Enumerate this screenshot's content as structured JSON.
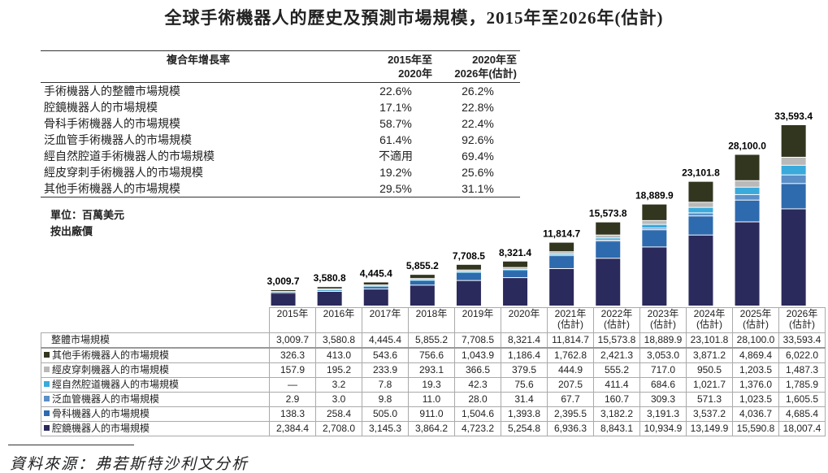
{
  "title": "全球手術機器人的歷史及預測市場規模，2015年至2026年(估計)",
  "cagr_table": {
    "header": {
      "label": "複合年增長率",
      "col1": [
        "2015年至",
        "2020年"
      ],
      "col2": [
        "2020年至",
        "2026年(估計)"
      ]
    },
    "rows": [
      {
        "label": "手術機器人的整體市場規模",
        "c1": "22.6%",
        "c2": "26.2%"
      },
      {
        "label": "腔鏡機器人的市場規模",
        "c1": "17.1%",
        "c2": "22.8%"
      },
      {
        "label": "骨科手術機器人的市場規模",
        "c1": "58.7%",
        "c2": "22.4%"
      },
      {
        "label": "泛血管手術機器人的市場規模",
        "c1": "61.4%",
        "c2": "92.6%"
      },
      {
        "label": "經自然腔道手術機器人的市場規模",
        "c1": "不適用",
        "c2": "69.4%"
      },
      {
        "label": "經皮穿刺手術機器人的市場規模",
        "c1": "19.2%",
        "c2": "25.6%"
      },
      {
        "label": "其他手術機器人的市場規模",
        "c1": "29.5%",
        "c2": "31.1%"
      }
    ]
  },
  "notes": {
    "unit": "單位：百萬美元",
    "price": "按出廠價"
  },
  "source": "資料來源：弗若斯特沙利文分析",
  "chart_data": {
    "type": "bar",
    "stacked": true,
    "title": "全球手術機器人的歷史及預測市場規模，2015年至2026年(估計)",
    "ylabel": "百萬美元",
    "categories": [
      "2015年",
      "2016年",
      "2017年",
      "2018年",
      "2019年",
      "2020年",
      "2021年",
      "2022年",
      "2023年",
      "2024年",
      "2025年",
      "2026年"
    ],
    "category_sub": [
      "",
      "",
      "",
      "",
      "",
      "",
      "(估計)",
      "(估計)",
      "(估計)",
      "(估計)",
      "(估計)",
      "(估計)"
    ],
    "total_label": "整體市場規模",
    "totals": [
      "3,009.7",
      "3,580.8",
      "4,445.4",
      "5,855.2",
      "7,708.5",
      "8,321.4",
      "11,814.7",
      "15,573.8",
      "18,889.9",
      "23,101.8",
      "28,100.0",
      "33,593.4"
    ],
    "total_values": [
      3009.7,
      3580.8,
      4445.4,
      5855.2,
      7708.5,
      8321.4,
      11814.7,
      15573.8,
      18889.9,
      23101.8,
      28100.0,
      33593.4
    ],
    "ylim": [
      0,
      33593.4
    ],
    "table_order": [
      5,
      4,
      3,
      2,
      1,
      0
    ],
    "series": [
      {
        "name": "腔鏡機器人的市場規模",
        "color": "#2b2a5c",
        "values": [
          2384.4,
          2708.0,
          3145.3,
          3864.2,
          4723.2,
          5254.8,
          6936.3,
          8843.1,
          10934.9,
          13149.9,
          15590.8,
          18007.4
        ],
        "labels": [
          "2,384.4",
          "2,708.0",
          "3,145.3",
          "3,864.2",
          "4,723.2",
          "5,254.8",
          "6,936.3",
          "8,843.1",
          "10,934.9",
          "13,149.9",
          "15,590.8",
          "18,007.4"
        ]
      },
      {
        "name": "骨科機器人的市場規模",
        "color": "#2e6aae",
        "values": [
          138.3,
          258.4,
          505.0,
          911.0,
          1504.6,
          1393.8,
          2395.5,
          3182.2,
          3191.3,
          3537.2,
          4036.7,
          4685.4
        ],
        "labels": [
          "138.3",
          "258.4",
          "505.0",
          "911.0",
          "1,504.6",
          "1,393.8",
          "2,395.5",
          "3,182.2",
          "3,191.3",
          "3,537.2",
          "4,036.7",
          "4,685.4"
        ]
      },
      {
        "name": "泛血管機器人的市場規模",
        "color": "#5b8fc6",
        "values": [
          2.9,
          3.0,
          9.8,
          11.0,
          28.0,
          31.4,
          67.7,
          160.7,
          309.3,
          571.3,
          1023.5,
          1605.5
        ],
        "labels": [
          "2.9",
          "3.0",
          "9.8",
          "11.0",
          "28.0",
          "31.4",
          "67.7",
          "160.7",
          "309.3",
          "571.3",
          "1,023.5",
          "1,605.5"
        ]
      },
      {
        "name": "經自然腔道機器人的市場規模",
        "color": "#3aaadb",
        "values": [
          0,
          3.2,
          7.8,
          19.3,
          42.3,
          75.6,
          207.5,
          411.4,
          684.6,
          1021.7,
          1376.0,
          1785.9
        ],
        "labels": [
          "—",
          "3.2",
          "7.8",
          "19.3",
          "42.3",
          "75.6",
          "207.5",
          "411.4",
          "684.6",
          "1,021.7",
          "1,376.0",
          "1,785.9"
        ]
      },
      {
        "name": "經皮穿刺機器人的市場規模",
        "color": "#b9b9b9",
        "values": [
          157.9,
          195.2,
          233.9,
          293.1,
          366.5,
          379.5,
          444.9,
          555.2,
          717.0,
          950.5,
          1203.5,
          1487.3
        ],
        "labels": [
          "157.9",
          "195.2",
          "233.9",
          "293.1",
          "366.5",
          "379.5",
          "444.9",
          "555.2",
          "717.0",
          "950.5",
          "1,203.5",
          "1,487.3"
        ]
      },
      {
        "name": "其他手術機器人的市場規模",
        "color": "#33361f",
        "values": [
          326.3,
          413.0,
          543.6,
          756.6,
          1043.9,
          1186.4,
          1762.8,
          2421.3,
          3053.0,
          3871.2,
          4869.4,
          6022.0
        ],
        "labels": [
          "326.3",
          "413.0",
          "543.6",
          "756.6",
          "1,043.9",
          "1,186.4",
          "1,762.8",
          "2,421.3",
          "3,053.0",
          "3,871.2",
          "4,869.4",
          "6,022.0"
        ]
      }
    ]
  }
}
